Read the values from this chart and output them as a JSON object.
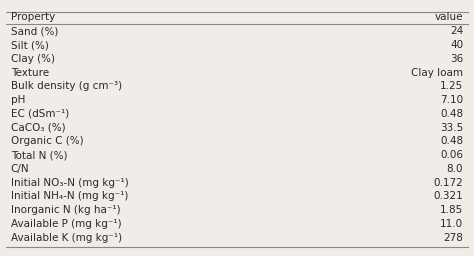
{
  "headers": [
    "Property",
    "value"
  ],
  "rows": [
    [
      "Sand (%)",
      "24"
    ],
    [
      "Silt (%)",
      "40"
    ],
    [
      "Clay (%)",
      "36"
    ],
    [
      "Texture",
      "Clay loam"
    ],
    [
      "Bulk density (g cm⁻³)",
      "1.25"
    ],
    [
      "pH",
      "7.10"
    ],
    [
      "EC (dSm⁻¹)",
      "0.48"
    ],
    [
      "CaCO₃ (%)",
      "33.5"
    ],
    [
      "Organic C (%)",
      "0.48"
    ],
    [
      "Total N (%)",
      "0.06"
    ],
    [
      "C/N",
      "8.0"
    ],
    [
      "Initial NO₃-N (mg kg⁻¹)",
      "0.172"
    ],
    [
      "Initial NH₄-N (mg kg⁻¹)",
      "0.321"
    ],
    [
      "Inorganic N (kg ha⁻¹)",
      "1.85"
    ],
    [
      "Available P (mg kg⁻¹)",
      "11.0"
    ],
    [
      "Available K (mg kg⁻¹)",
      "278"
    ]
  ],
  "background_color": "#f0ede8",
  "text_color": "#2a2a2a",
  "header_line_color": "#888888",
  "font_size": 7.5,
  "header_font_size": 7.5
}
